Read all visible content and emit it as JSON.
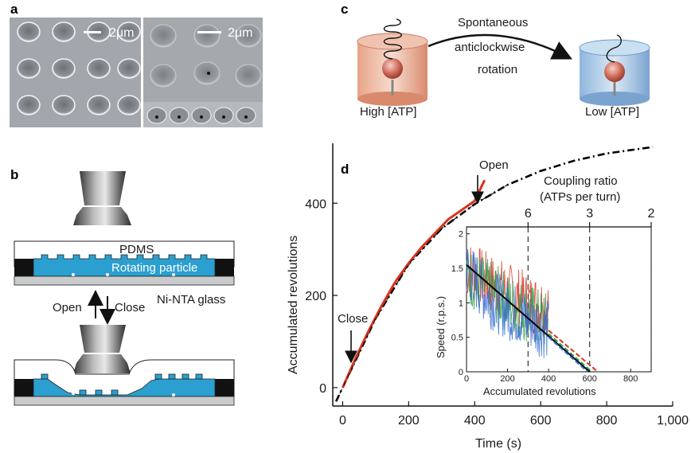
{
  "panels": {
    "a": "a",
    "b": "b",
    "c": "c",
    "d": "d"
  },
  "a": {
    "scale_left": "2μm",
    "scale_right": "2μm"
  },
  "b": {
    "pdms": "PDMS",
    "particle": "Rotating particle",
    "glass": "Ni-NTA glass",
    "open": "Open",
    "close": "Close"
  },
  "c": {
    "arrow_text": [
      "Spontaneous",
      "anticlockwise",
      "rotation"
    ],
    "high": "High [ATP]",
    "low": "Low [ATP]"
  },
  "d": {
    "annot_open": "Open",
    "annot_close": "Close",
    "coupling_title": [
      "Coupling ratio",
      "(ATPs per turn)"
    ],
    "coupling_ticks": [
      "6",
      "3",
      "2"
    ],
    "inset_ylabel": "Speed (r.p.s.)",
    "inset_xlabel": "Accumulated revolutions"
  },
  "chart_data": [
    {
      "type": "line",
      "xlabel": "Time (s)",
      "ylabel": "Accumulated revolutions",
      "xlim": [
        -30,
        1000
      ],
      "ylim": [
        -40,
        530
      ],
      "xticks": [
        0,
        200,
        400,
        600,
        800,
        1000
      ],
      "xtick_labels": [
        "0",
        "200",
        "400",
        "600",
        "800",
        "1,000"
      ],
      "yticks": [
        0,
        200,
        400
      ],
      "ytick_labels": [
        "0",
        "200",
        "400"
      ],
      "series": [
        {
          "style": "measured",
          "color": "#d8321e",
          "x": [
            0,
            40,
            80,
            120,
            160,
            200,
            240,
            280,
            320,
            360,
            400,
            430
          ],
          "y": [
            0,
            65,
            125,
            180,
            230,
            270,
            305,
            335,
            365,
            385,
            405,
            450
          ]
        },
        {
          "style": "dash-dot fit",
          "color": "#000000",
          "x": [
            -20,
            0,
            100,
            200,
            300,
            400,
            500,
            600,
            700,
            800,
            900,
            940
          ],
          "y": [
            -30,
            0,
            150,
            268,
            345,
            398,
            440,
            470,
            492,
            508,
            518,
            522
          ]
        }
      ]
    },
    {
      "type": "line",
      "xlabel": "Accumulated revolutions",
      "ylabel": "Speed (r.p.s.)",
      "xlim": [
        0,
        900
      ],
      "ylim": [
        0,
        2.1
      ],
      "xticks": [
        0,
        200,
        400,
        600,
        800
      ],
      "yticks": [
        0,
        0.5,
        1,
        1.5,
        2
      ],
      "ytick_labels": [
        "0",
        "0.5",
        "1",
        "1.5",
        "2"
      ],
      "top_ticks": [
        300,
        600,
        900
      ],
      "series": [
        {
          "color": "#d8321e",
          "x": [
            0,
            100,
            200,
            300,
            400
          ],
          "y": [
            1.5,
            1.3,
            1.15,
            1.0,
            0.95
          ]
        },
        {
          "color": "#2a9a4a",
          "x": [
            0,
            100,
            200,
            300,
            400
          ],
          "y": [
            1.4,
            1.2,
            1.0,
            0.85,
            0.7
          ]
        },
        {
          "color": "#3a6fd8",
          "x": [
            0,
            100,
            200,
            300,
            400
          ],
          "y": [
            1.5,
            1.1,
            0.9,
            0.75,
            0.6
          ]
        }
      ],
      "fit_lines": [
        {
          "color": "#000000",
          "x": [
            0,
            600
          ],
          "y": [
            1.55,
            0
          ]
        },
        {
          "color": "#d8321e",
          "x": [
            400,
            640
          ],
          "y": [
            0.6,
            0
          ]
        },
        {
          "color": "#2a9a4a",
          "x": [
            400,
            610
          ],
          "y": [
            0.55,
            0
          ]
        },
        {
          "color": "#3a6fd8",
          "x": [
            400,
            590
          ],
          "y": [
            0.5,
            0
          ]
        }
      ]
    }
  ]
}
